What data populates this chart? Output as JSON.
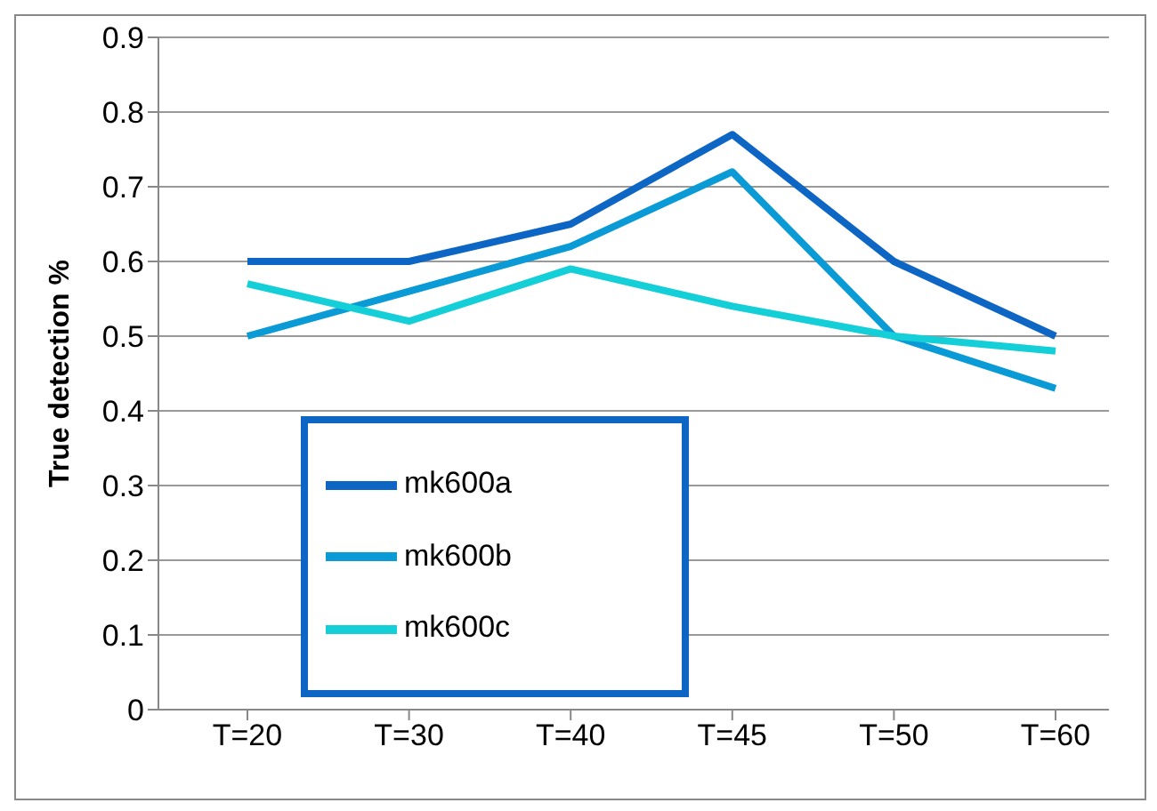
{
  "chart_data": {
    "type": "line",
    "ylabel": "True detection %",
    "categories": [
      "T=20",
      "T=30",
      "T=40",
      "T=45",
      "T=50",
      "T=60"
    ],
    "series": [
      {
        "name": "mk600a",
        "color": "#0e66c4",
        "values": [
          0.6,
          0.6,
          0.65,
          0.77,
          0.6,
          0.5
        ]
      },
      {
        "name": "mk600b",
        "color": "#0a9ad6",
        "values": [
          0.5,
          0.56,
          0.62,
          0.72,
          0.5,
          0.43
        ]
      },
      {
        "name": "mk600c",
        "color": "#14cfd8",
        "values": [
          0.57,
          0.52,
          0.59,
          0.54,
          0.5,
          0.48
        ]
      }
    ],
    "ylim": [
      0,
      0.9
    ],
    "yticks": [
      0,
      0.1,
      0.2,
      0.3,
      0.4,
      0.5,
      0.6,
      0.7,
      0.8,
      0.9
    ],
    "grid": "y",
    "legend": "bottom left",
    "marker": "none",
    "line_style": "solid"
  }
}
